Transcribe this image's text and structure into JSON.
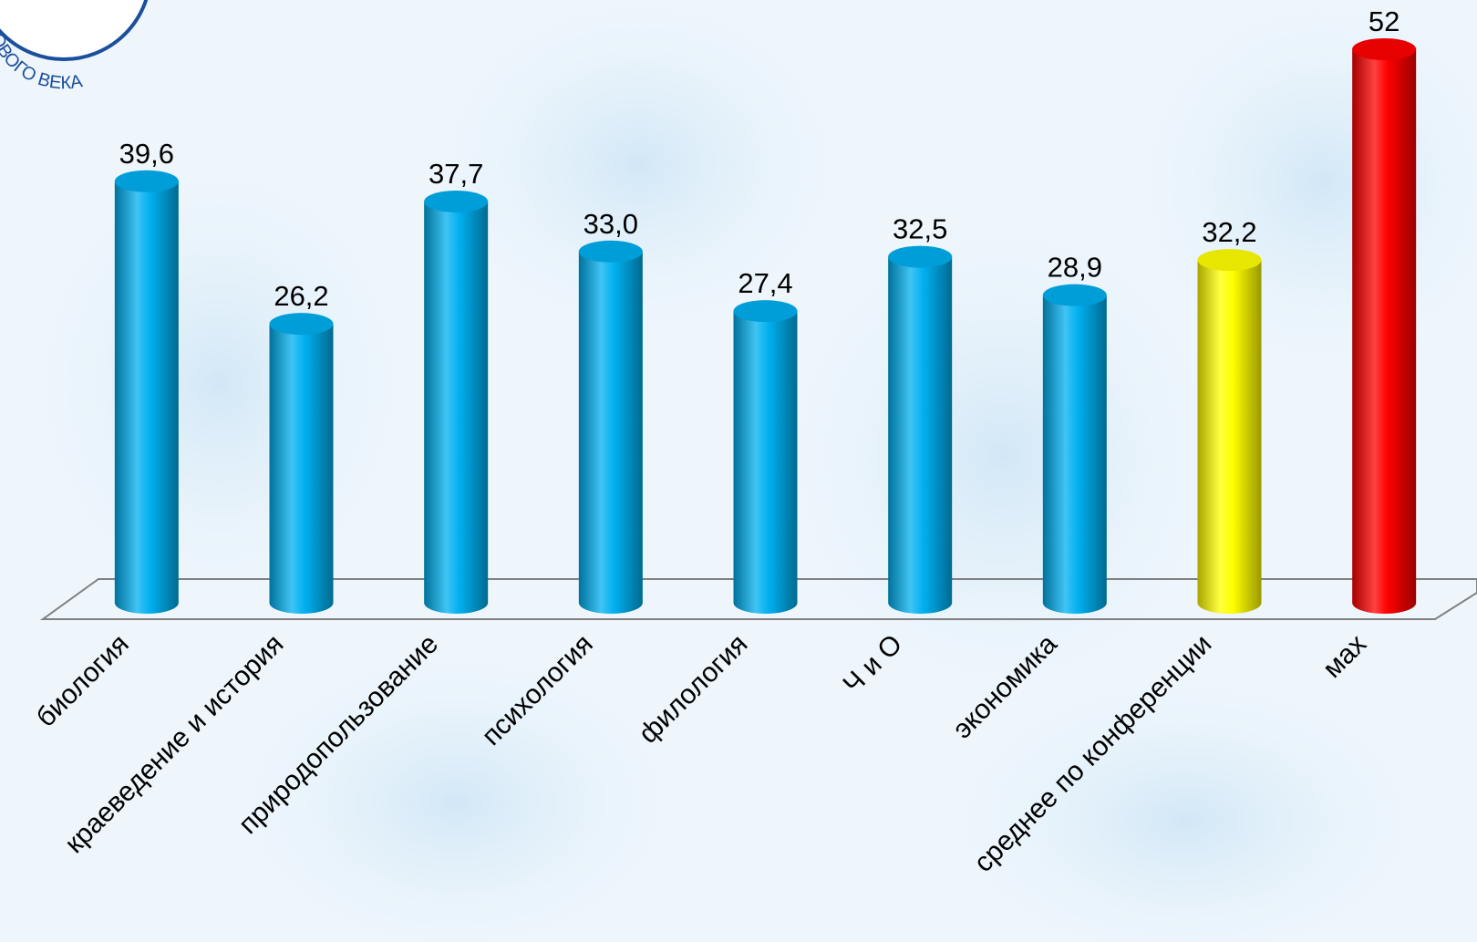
{
  "logo": {
    "text": "ОВОГО ВЕКА"
  },
  "chart_data": {
    "type": "bar3d",
    "categories": [
      "биология",
      "краеведение и история",
      "природопользование",
      "психология",
      "филология",
      "Ч и О",
      "экономика",
      "среднее по конференции",
      "мах"
    ],
    "values": [
      39.6,
      26.2,
      37.7,
      33.0,
      27.4,
      32.5,
      28.9,
      32.2,
      52
    ],
    "value_labels": [
      "39,6",
      "26,2",
      "37,7",
      "33,0",
      "27,4",
      "32,5",
      "28,9",
      "32,2",
      "52"
    ],
    "colors": [
      "#00b0f0",
      "#00b0f0",
      "#00b0f0",
      "#00b0f0",
      "#00b0f0",
      "#00b0f0",
      "#00b0f0",
      "#ffff00",
      "#ff0000"
    ],
    "ylim": [
      0,
      55
    ]
  }
}
